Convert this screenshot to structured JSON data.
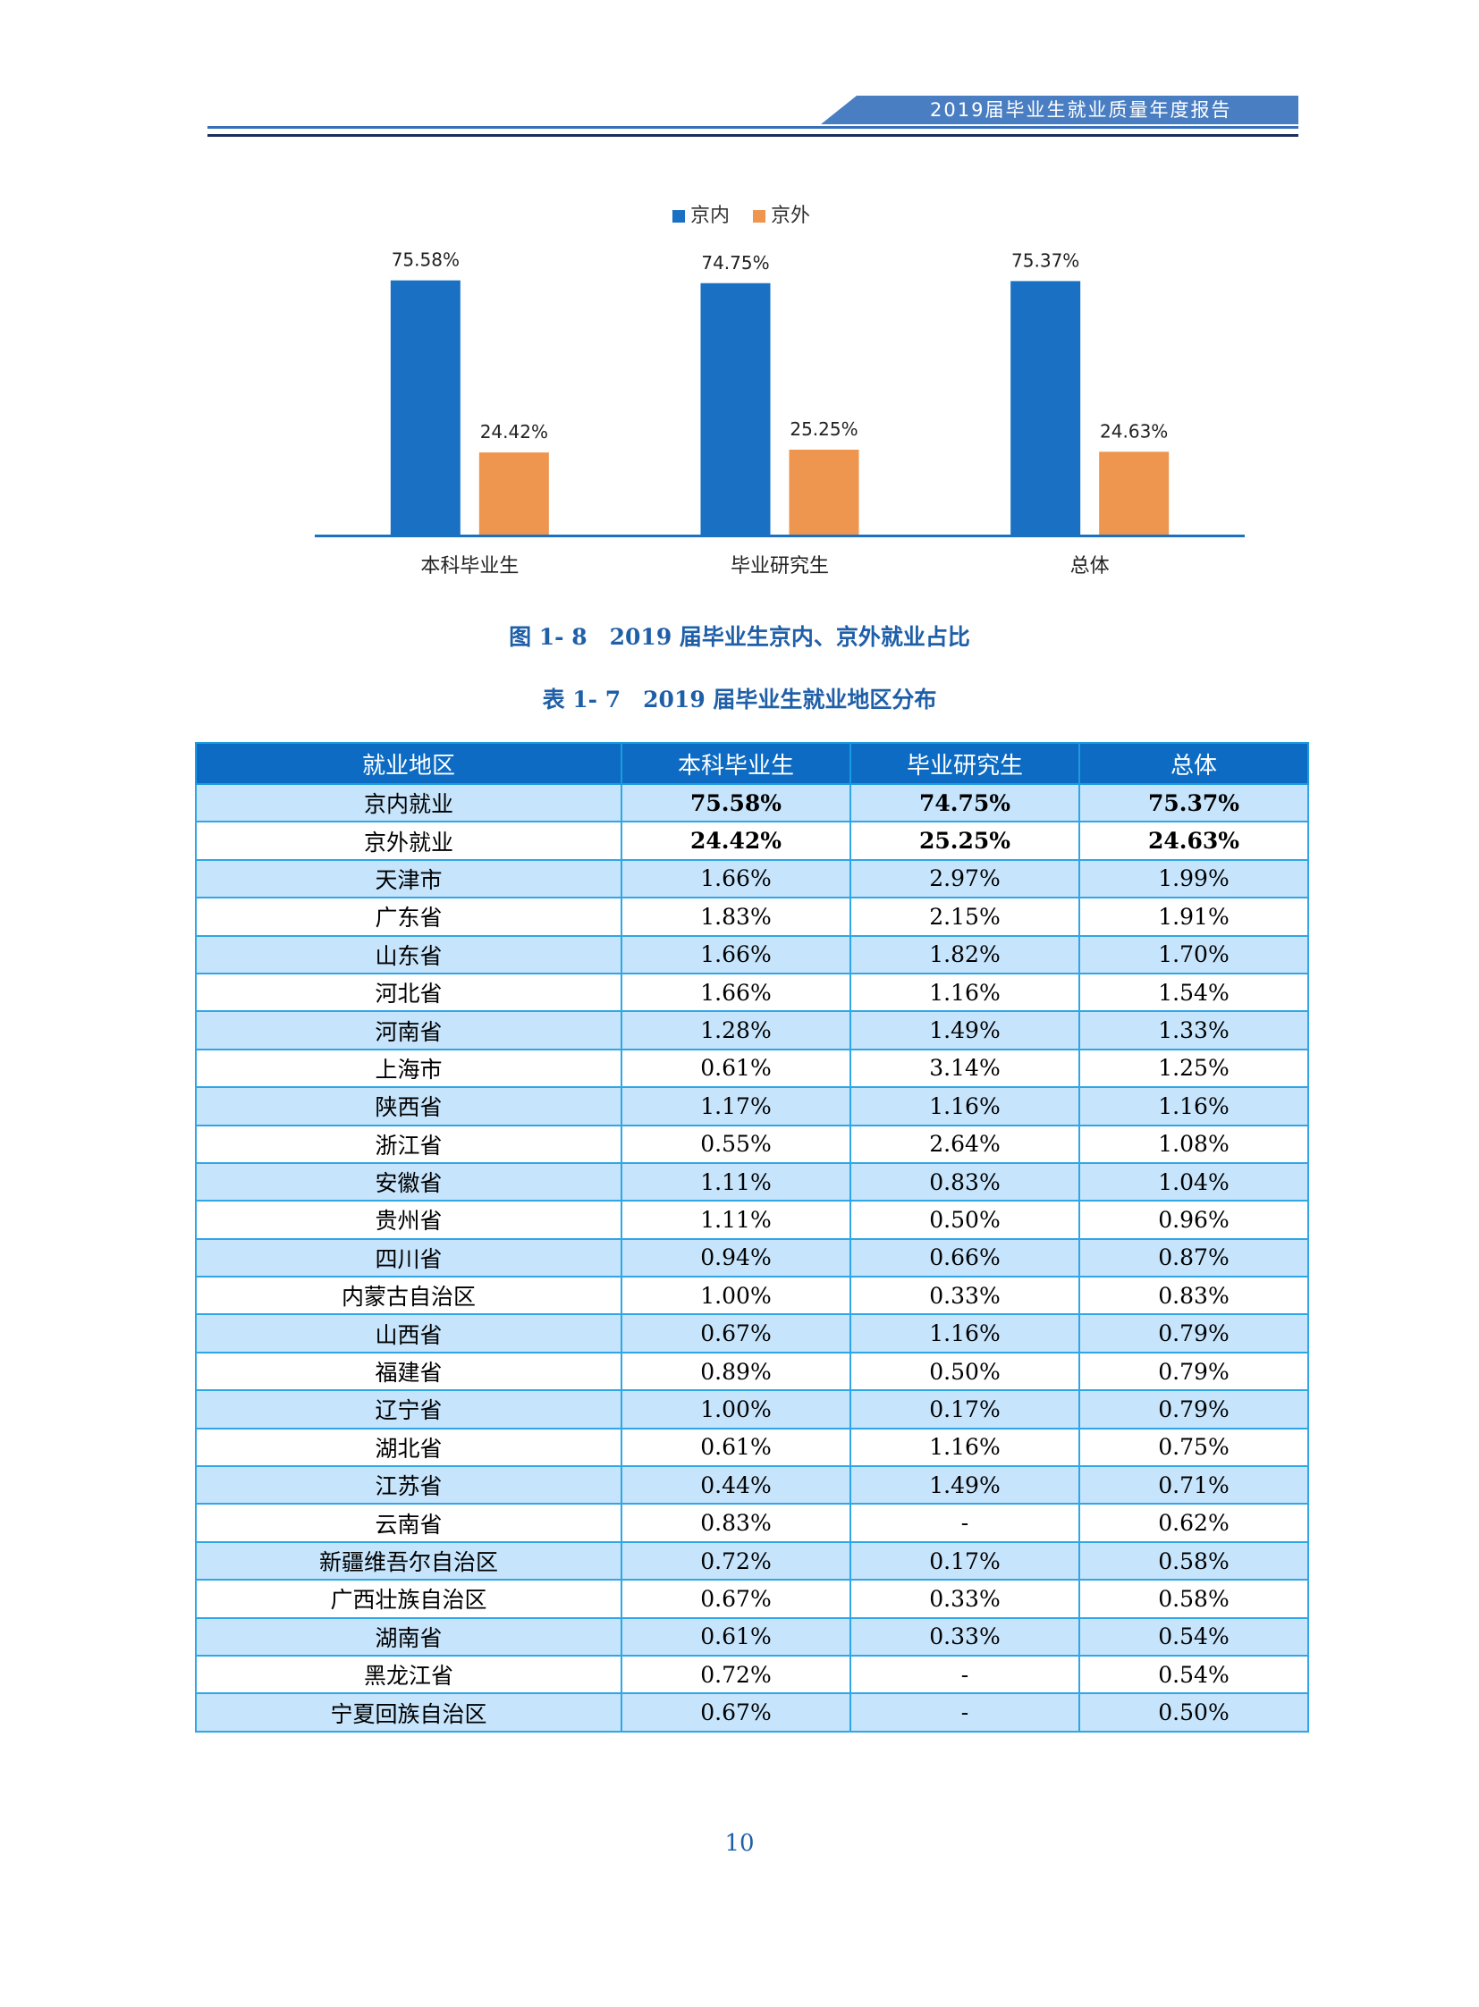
{
  "header": {
    "title": "2019届毕业生就业质量年度报告"
  },
  "chart_data": {
    "type": "bar",
    "categories": [
      "本科毕业生",
      "毕业研究生",
      "总体"
    ],
    "series": [
      {
        "name": "京内",
        "values": [
          75.58,
          74.75,
          75.37
        ],
        "labels": [
          "75.58%",
          "74.75%",
          "75.37%"
        ],
        "color": "#1a71c4"
      },
      {
        "name": "京外",
        "values": [
          24.42,
          25.25,
          24.63
        ],
        "labels": [
          "24.42%",
          "25.25%",
          "24.63%"
        ],
        "color": "#ee9550"
      }
    ],
    "ylim": [
      0,
      80
    ],
    "legend_position": "top-center"
  },
  "figure_caption": "图 1- 8　2019 届毕业生京内、京外就业占比",
  "table_caption": "表 1- 7　2019 届毕业生就业地区分布",
  "table": {
    "headers": [
      "就业地区",
      "本科毕业生",
      "毕业研究生",
      "总体"
    ],
    "rows": [
      [
        "京内就业",
        "75.58%",
        "74.75%",
        "75.37%"
      ],
      [
        "京外就业",
        "24.42%",
        "25.25%",
        "24.63%"
      ],
      [
        "天津市",
        "1.66%",
        "2.97%",
        "1.99%"
      ],
      [
        "广东省",
        "1.83%",
        "2.15%",
        "1.91%"
      ],
      [
        "山东省",
        "1.66%",
        "1.82%",
        "1.70%"
      ],
      [
        "河北省",
        "1.66%",
        "1.16%",
        "1.54%"
      ],
      [
        "河南省",
        "1.28%",
        "1.49%",
        "1.33%"
      ],
      [
        "上海市",
        "0.61%",
        "3.14%",
        "1.25%"
      ],
      [
        "陕西省",
        "1.17%",
        "1.16%",
        "1.16%"
      ],
      [
        "浙江省",
        "0.55%",
        "2.64%",
        "1.08%"
      ],
      [
        "安徽省",
        "1.11%",
        "0.83%",
        "1.04%"
      ],
      [
        "贵州省",
        "1.11%",
        "0.50%",
        "0.96%"
      ],
      [
        "四川省",
        "0.94%",
        "0.66%",
        "0.87%"
      ],
      [
        "内蒙古自治区",
        "1.00%",
        "0.33%",
        "0.83%"
      ],
      [
        "山西省",
        "0.67%",
        "1.16%",
        "0.79%"
      ],
      [
        "福建省",
        "0.89%",
        "0.50%",
        "0.79%"
      ],
      [
        "辽宁省",
        "1.00%",
        "0.17%",
        "0.79%"
      ],
      [
        "湖北省",
        "0.61%",
        "1.16%",
        "0.75%"
      ],
      [
        "江苏省",
        "0.44%",
        "1.49%",
        "0.71%"
      ],
      [
        "云南省",
        "0.83%",
        "-",
        "0.62%"
      ],
      [
        "新疆维吾尔自治区",
        "0.72%",
        "0.17%",
        "0.58%"
      ],
      [
        "广西壮族自治区",
        "0.67%",
        "0.33%",
        "0.58%"
      ],
      [
        "湖南省",
        "0.61%",
        "0.33%",
        "0.54%"
      ],
      [
        "黑龙江省",
        "0.72%",
        "-",
        "0.54%"
      ],
      [
        "宁夏回族自治区",
        "0.67%",
        "-",
        "0.50%"
      ]
    ],
    "bold_rows": [
      0,
      1
    ]
  },
  "page_number": "10"
}
